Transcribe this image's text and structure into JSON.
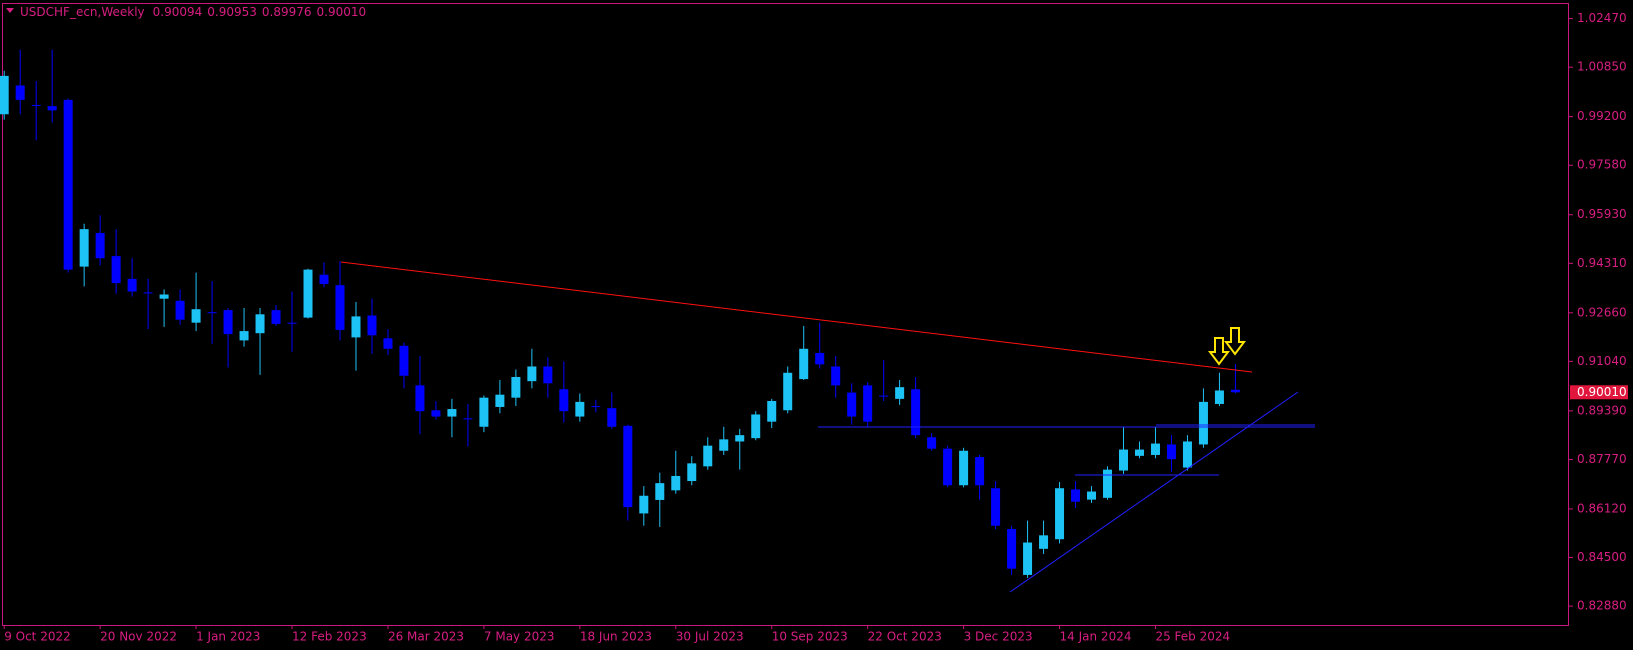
{
  "chart_data": {
    "type": "candlestick",
    "title": "USDCHF_ecn,Weekly",
    "header_values": [
      "0.90094",
      "0.90953",
      "0.89976",
      "0.90010"
    ],
    "up_color": "#1ec3f5",
    "down_color": "#0000ff",
    "categories": [
      "9 Oct 2022",
      null,
      null,
      null,
      null,
      null,
      "20 Nov 2022",
      null,
      null,
      null,
      null,
      null,
      "1 Jan 2023",
      null,
      null,
      null,
      null,
      null,
      "12 Feb 2023",
      null,
      null,
      null,
      null,
      null,
      "26 Mar 2023",
      null,
      null,
      null,
      null,
      null,
      "7 May 2023",
      null,
      null,
      null,
      null,
      null,
      "18 Jun 2023",
      null,
      null,
      null,
      null,
      null,
      "30 Jul 2023",
      null,
      null,
      null,
      null,
      null,
      "10 Sep 2023",
      null,
      null,
      null,
      null,
      null,
      "22 Oct 2023",
      null,
      null,
      null,
      null,
      null,
      "3 Dec 2023",
      null,
      null,
      null,
      null,
      null,
      "14 Jan 2024",
      null,
      null,
      null,
      null,
      null,
      "25 Feb 2024",
      null,
      null,
      null,
      null,
      null
    ],
    "open": [
      0.9928,
      1.0024,
      0.9959,
      0.9955,
      0.9976,
      0.942,
      0.9532,
      0.9455,
      0.9379,
      0.9334,
      0.9313,
      0.9306,
      0.9233,
      0.9268,
      0.9275,
      0.9174,
      0.9198,
      0.9275,
      0.9233,
      0.925,
      0.9393,
      0.9358,
      0.9184,
      0.9257,
      0.9181,
      0.9156,
      0.9024,
      0.8941,
      0.892,
      0.8914,
      0.8886,
      0.8952,
      0.8983,
      0.9038,
      0.9087,
      0.9011,
      0.892,
      0.8955,
      0.8948,
      0.8889,
      0.8597,
      0.8642,
      0.8674,
      0.8705,
      0.8754,
      0.8806,
      0.8837,
      0.8848,
      0.8903,
      0.8941,
      0.9045,
      0.9132,
      0.9087,
      0.9,
      0.9024,
      0.899,
      0.8979,
      0.9011,
      0.8851,
      0.8813,
      0.8691,
      0.8785,
      0.8681,
      0.8545,
      0.8392,
      0.8479,
      0.8511,
      0.8677,
      0.8643,
      0.8649,
      0.874,
      0.8789,
      0.8792,
      0.8827,
      0.875,
      0.8827,
      0.8962,
      0.90094
    ],
    "high": [
      1.0073,
      1.0143,
      1.0039,
      1.0143,
      0.998,
      0.9563,
      0.9591,
      0.9545,
      0.9448,
      0.9379,
      0.9344,
      0.9344,
      0.94,
      0.9372,
      0.9282,
      0.9282,
      0.9282,
      0.9292,
      0.9337,
      0.9413,
      0.9434,
      0.9438,
      0.9302,
      0.9313,
      0.9212,
      0.9167,
      0.9122,
      0.8972,
      0.8979,
      0.8962,
      0.899,
      0.9042,
      0.9077,
      0.9146,
      0.9118,
      0.9104,
      0.8997,
      0.8976,
      0.9,
      0.8893,
      0.8688,
      0.8733,
      0.8806,
      0.8788,
      0.8851,
      0.8886,
      0.8879,
      0.8938,
      0.8979,
      0.9087,
      0.9222,
      0.9233,
      0.9122,
      0.9031,
      0.9035,
      0.9108,
      0.9042,
      0.9052,
      0.8865,
      0.8823,
      0.8816,
      0.8792,
      0.8705,
      0.8556,
      0.8573,
      0.8573,
      0.8702,
      0.8705,
      0.8688,
      0.8754,
      0.8886,
      0.8837,
      0.8886,
      0.8858,
      0.8858,
      0.9014,
      0.9066,
      0.90953
    ],
    "low": [
      0.991,
      0.9928,
      0.9841,
      0.99,
      0.94,
      0.9354,
      0.9424,
      0.933,
      0.932,
      0.9212,
      0.9219,
      0.9226,
      0.9205,
      0.9163,
      0.9084,
      0.9153,
      0.9059,
      0.9222,
      0.9136,
      0.9247,
      0.9351,
      0.9174,
      0.9073,
      0.9129,
      0.9125,
      0.9014,
      0.8861,
      0.891,
      0.8851,
      0.882,
      0.8868,
      0.8931,
      0.8955,
      0.9014,
      0.8983,
      0.89,
      0.8903,
      0.8934,
      0.8879,
      0.8573,
      0.8556,
      0.8552,
      0.8663,
      0.8691,
      0.8743,
      0.8792,
      0.8743,
      0.8841,
      0.8882,
      0.8931,
      0.9042,
      0.908,
      0.8983,
      0.8893,
      0.8886,
      0.8972,
      0.8959,
      0.8848,
      0.8806,
      0.8684,
      0.8684,
      0.8643,
      0.8545,
      0.8392,
      0.8382,
      0.8462,
      0.8497,
      0.8615,
      0.8632,
      0.8643,
      0.8729,
      0.8781,
      0.8781,
      0.8736,
      0.874,
      0.8816,
      0.8955,
      0.89976
    ],
    "close": [
      1.0056,
      0.9976,
      0.9958,
      0.9941,
      0.941,
      0.9545,
      0.9448,
      0.9365,
      0.9337,
      0.9333,
      0.9327,
      0.9243,
      0.9278,
      0.9267,
      0.9195,
      0.9205,
      0.9261,
      0.9229,
      0.9232,
      0.941,
      0.9362,
      0.9209,
      0.9254,
      0.9191,
      0.9146,
      0.9056,
      0.8938,
      0.892,
      0.8945,
      0.8913,
      0.8983,
      0.8993,
      0.9052,
      0.9087,
      0.9031,
      0.8938,
      0.8969,
      0.8954,
      0.8886,
      0.8618,
      0.8656,
      0.8698,
      0.8722,
      0.8764,
      0.8823,
      0.8844,
      0.8858,
      0.8927,
      0.8972,
      0.9066,
      0.9146,
      0.9094,
      0.9024,
      0.892,
      0.8903,
      0.8989,
      0.9018,
      0.8858,
      0.8813,
      0.8691,
      0.8806,
      0.8691,
      0.8556,
      0.8413,
      0.85,
      0.8524,
      0.8681,
      0.8636,
      0.867,
      0.8743,
      0.881,
      0.881,
      0.883,
      0.8778,
      0.8837,
      0.8969,
      0.9007,
      0.9001
    ],
    "ylim": [
      0.8225,
      1.0299
    ],
    "yticks": [
      {
        "value": 1.0247,
        "label": "1.02470"
      },
      {
        "value": 1.0085,
        "label": "1.00850"
      },
      {
        "value": 0.992,
        "label": "0.99200"
      },
      {
        "value": 0.9758,
        "label": "0.97580"
      },
      {
        "value": 0.9593,
        "label": "0.95930"
      },
      {
        "value": 0.9431,
        "label": "0.94310"
      },
      {
        "value": 0.9266,
        "label": "0.92660"
      },
      {
        "value": 0.9104,
        "label": "0.91040"
      },
      {
        "value": 0.8939,
        "label": "0.89390"
      },
      {
        "value": 0.8777,
        "label": "0.87770"
      },
      {
        "value": 0.8612,
        "label": "0.86120"
      },
      {
        "value": 0.845,
        "label": "0.84500"
      },
      {
        "value": 0.8288,
        "label": "0.82880"
      }
    ],
    "last_price": {
      "value": 0.9001,
      "label": "0.90010"
    },
    "last_price_color": "#e0163c"
  }
}
